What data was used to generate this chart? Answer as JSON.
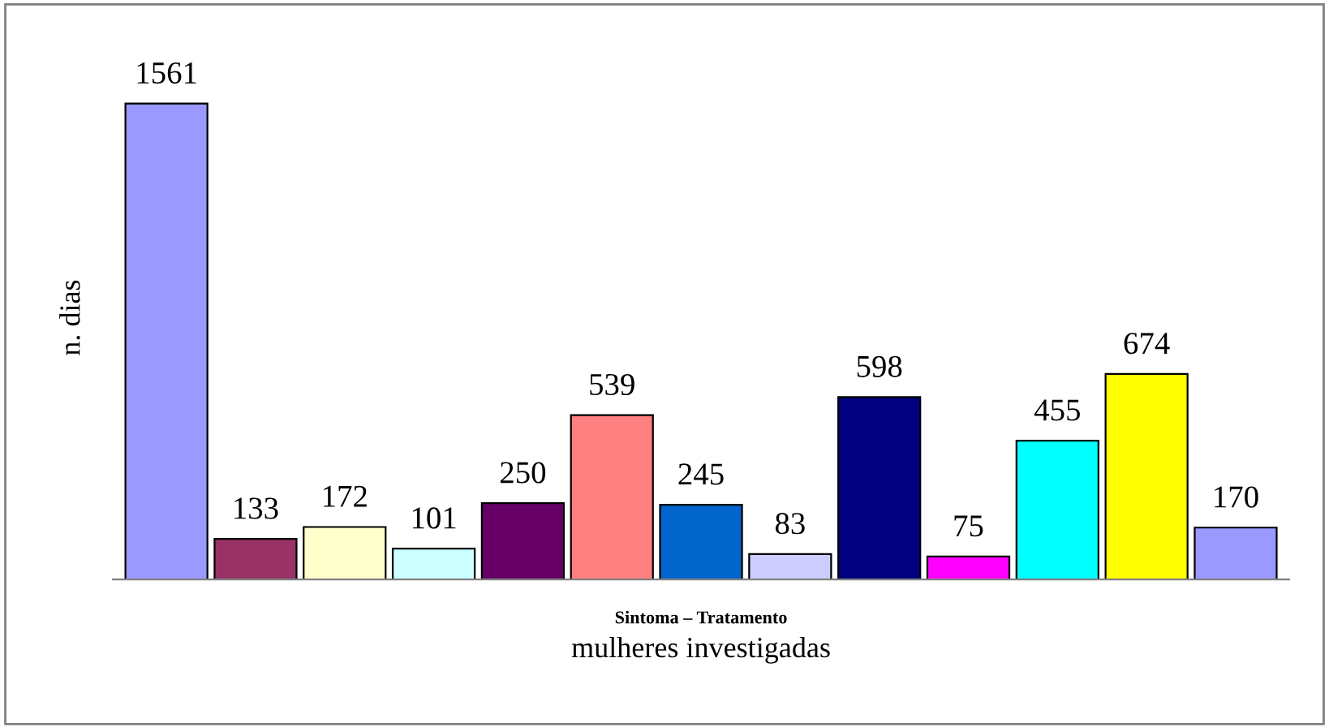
{
  "chart_data": {
    "type": "bar",
    "categories": [
      null,
      null,
      null,
      null,
      null,
      null,
      null,
      null,
      null,
      null,
      null,
      null,
      null
    ],
    "values": [
      1561,
      133,
      172,
      101,
      250,
      539,
      245,
      83,
      598,
      75,
      455,
      674,
      170
    ],
    "colors": [
      "#9999ff",
      "#993366",
      "#ffffcc",
      "#ccffff",
      "#660066",
      "#ff8080",
      "#0066cc",
      "#ccccff",
      "#000080",
      "#ff00ff",
      "#00ffff",
      "#ffff00",
      "#9999ff"
    ],
    "ylabel": "n. dias",
    "xlabel": "mulheres investigadas",
    "annotations": [
      "Sintoma – Tratamento"
    ],
    "data_labels": true,
    "grid": false,
    "legend": false
  }
}
